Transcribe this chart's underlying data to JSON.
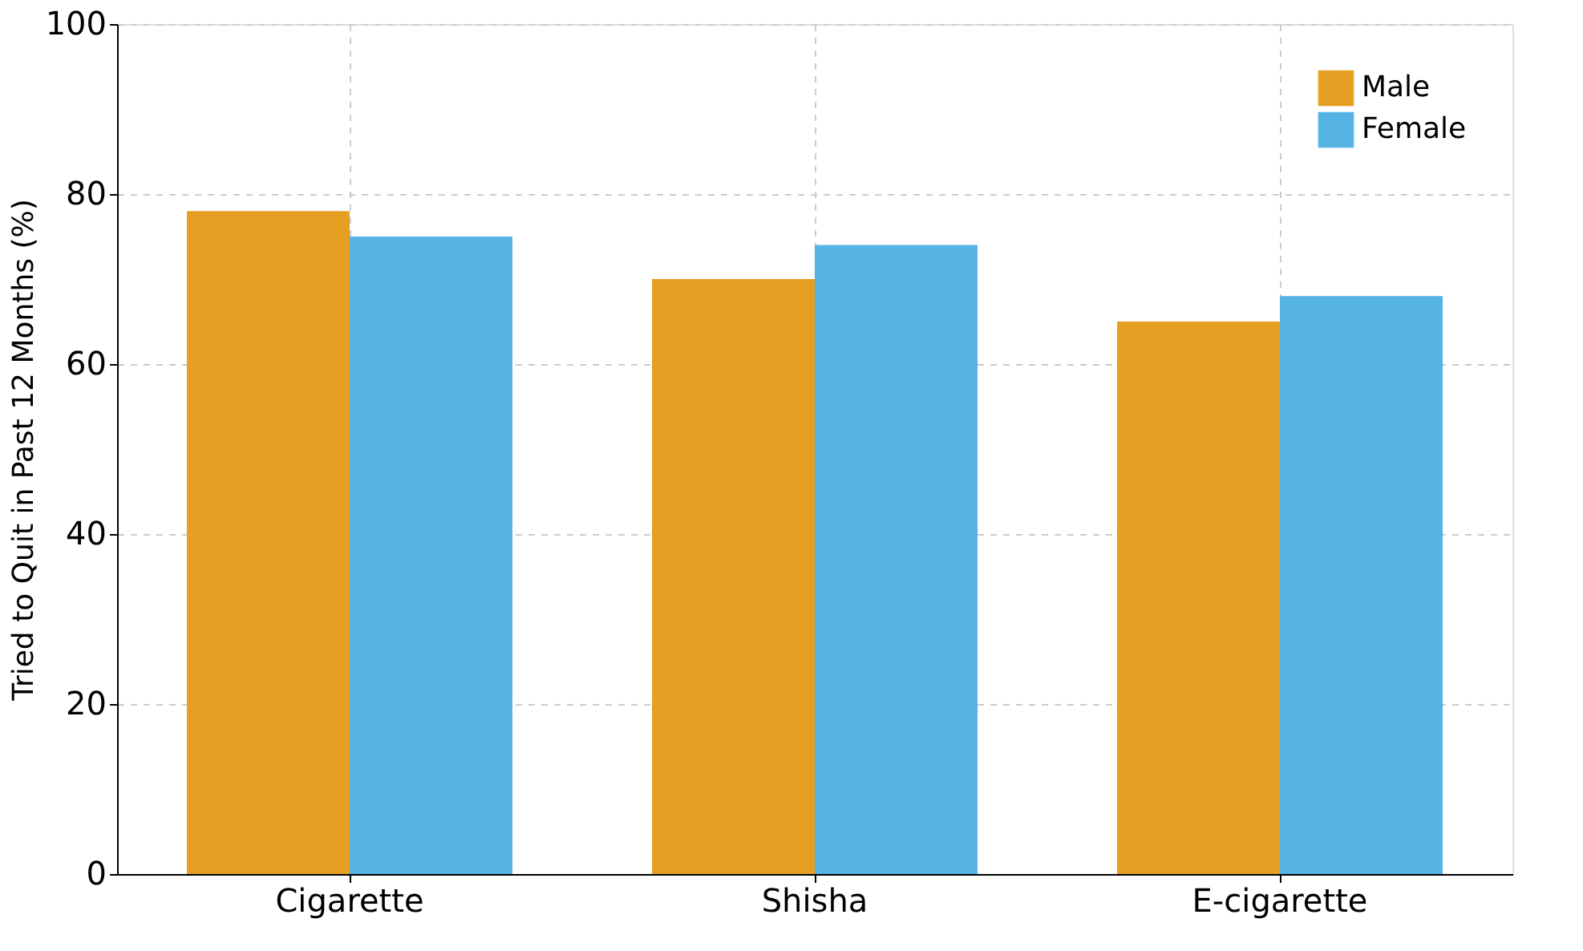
{
  "chart_data": {
    "type": "bar",
    "ylabel": "Tried to Quit in Past 12 Months (%)",
    "categories": [
      "Cigarette",
      "Shisha",
      "E-cigarette"
    ],
    "series": [
      {
        "name": "Male",
        "color": "#e5a023",
        "values": [
          78,
          70,
          65
        ]
      },
      {
        "name": "Female",
        "color": "#56b4e4",
        "values": [
          75,
          74,
          68
        ]
      }
    ],
    "ylim": [
      0,
      100
    ],
    "yticks": [
      0,
      20,
      40,
      60,
      80,
      100
    ],
    "grid": true,
    "legend": "top right"
  }
}
